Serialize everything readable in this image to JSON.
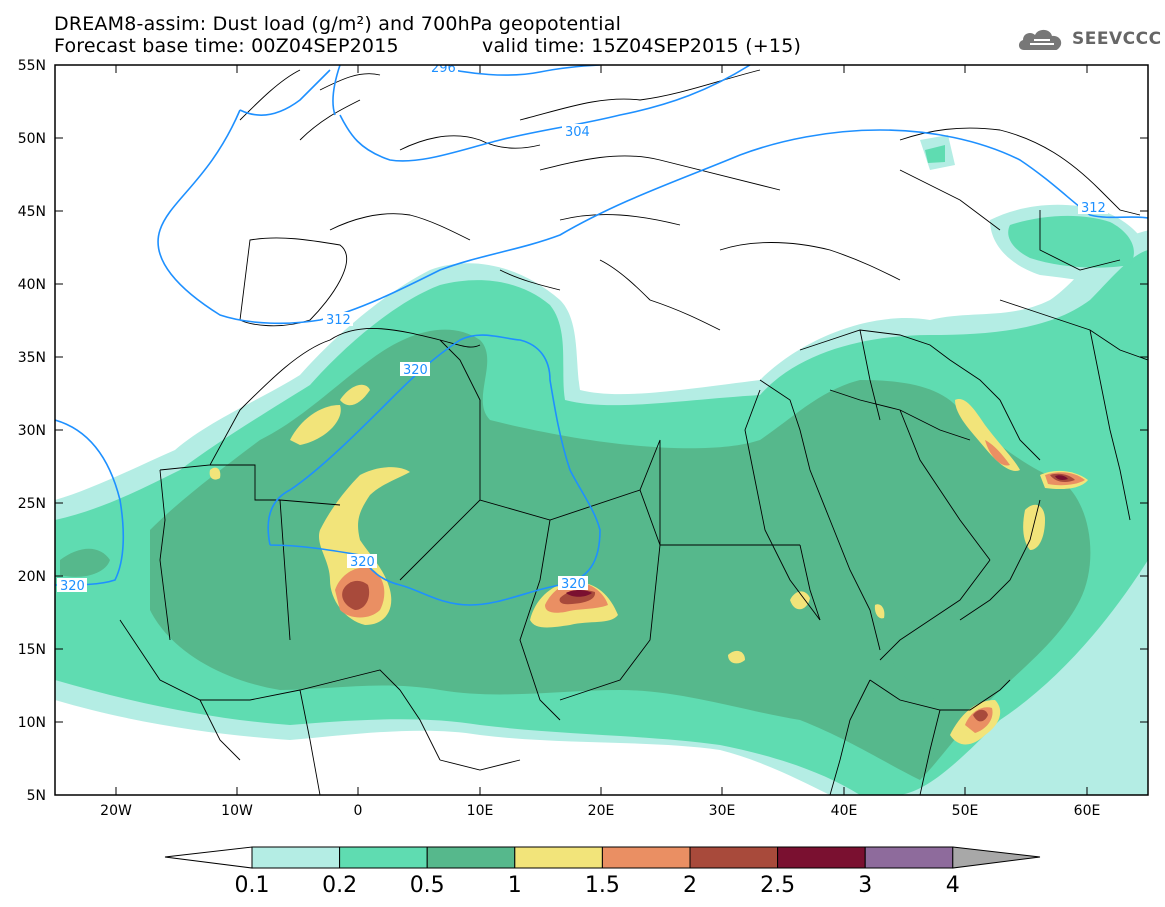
{
  "header": {
    "title_line1": "DREAM8-assim: Dust load (g/m²) and 700hPa geopotential",
    "base_time": "Forecast base time: 00Z04SEP2015",
    "valid_time": "valid time: 15Z04SEP2015 (+15)"
  },
  "logo": {
    "text": "SEEVCCC",
    "icon": "cloud-icon"
  },
  "map": {
    "lon_range": [
      -25,
      65
    ],
    "lat_range": [
      5,
      55
    ],
    "lat_labels": [
      "55N",
      "50N",
      "45N",
      "40N",
      "35N",
      "30N",
      "25N",
      "20N",
      "15N",
      "10N",
      "5N"
    ],
    "lon_labels": [
      "20W",
      "10W",
      "0",
      "10E",
      "20E",
      "30E",
      "40E",
      "50E",
      "60E"
    ],
    "contour_labels": [
      "296",
      "304",
      "312",
      "312",
      "320",
      "320",
      "320",
      "320"
    ]
  },
  "colorbar": {
    "labels": [
      "0.1",
      "0.2",
      "0.5",
      "1",
      "1.5",
      "2",
      "2.5",
      "3",
      "4"
    ],
    "colors": [
      "#ffffff",
      "#b4ede4",
      "#5fdcb1",
      "#56b88c",
      "#f2e47a",
      "#ea8f63",
      "#a84a3b",
      "#7a1030",
      "#8e6b9c",
      "#a8a8a8"
    ]
  }
}
